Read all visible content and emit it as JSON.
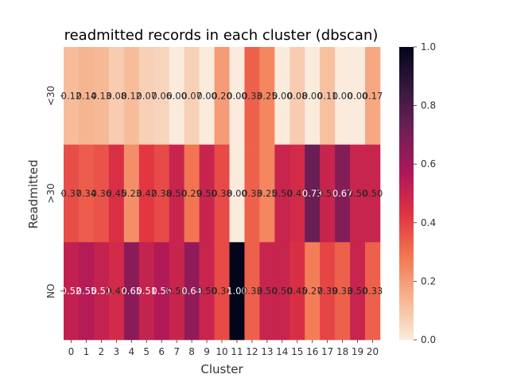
{
  "chart_data": {
    "type": "heatmap",
    "title": "readmitted records in each cluster (dbscan)",
    "xlabel": "Cluster",
    "ylabel": "Readmitted",
    "x_categories": [
      "0",
      "1",
      "2",
      "3",
      "4",
      "5",
      "6",
      "7",
      "8",
      "9",
      "10",
      "11",
      "12",
      "13",
      "14",
      "15",
      "16",
      "17",
      "18",
      "19",
      "20"
    ],
    "y_categories": [
      "<30",
      ">30",
      "NO"
    ],
    "values": [
      [
        0.12,
        0.14,
        0.13,
        0.08,
        0.12,
        0.07,
        0.06,
        0.0,
        0.07,
        0.0,
        0.2,
        0.0,
        0.33,
        0.25,
        0.0,
        0.08,
        0.0,
        0.11,
        0.0,
        0.0,
        0.17
      ],
      [
        0.37,
        0.34,
        0.36,
        0.45,
        0.23,
        0.42,
        0.38,
        0.5,
        0.29,
        0.5,
        0.38,
        0.0,
        0.33,
        0.25,
        0.5,
        0.47,
        0.73,
        0.5,
        0.67,
        0.5,
        0.5
      ],
      [
        0.52,
        0.55,
        0.51,
        0.47,
        0.65,
        0.51,
        0.56,
        0.5,
        0.64,
        0.5,
        0.38,
        1.0,
        0.33,
        0.5,
        0.5,
        0.45,
        0.27,
        0.39,
        0.33,
        0.5,
        0.33
      ]
    ],
    "value_labels": [
      [
        "0.12",
        "0.14",
        "0.13",
        "0.08",
        "0.12",
        "0.07",
        "0.06",
        "0.00",
        "0.07",
        "0.00",
        "0.20",
        "0.00",
        "0.33",
        "0.25",
        "0.00",
        "0.08",
        "0.00",
        "0.11",
        "0.00",
        "0.00",
        "0.17"
      ],
      [
        "0.37",
        "0.34",
        "0.36",
        "0.45",
        "0.23",
        "0.42",
        "0.38",
        "0.50",
        "0.29",
        "0.50",
        "0.38",
        "0.00",
        "0.33",
        "0.25",
        "0.50",
        "0.47",
        "0.73",
        "0.50",
        "0.67",
        "0.50",
        "0.50"
      ],
      [
        "0.52",
        "0.55",
        "0.51",
        "0.47",
        "0.65",
        "0.51",
        "0.56",
        "0.50",
        "0.64",
        "0.50",
        "0.38",
        "1.00",
        "0.33",
        "0.50",
        "0.50",
        "0.45",
        "0.27",
        "0.39",
        "0.33",
        "0.50",
        "0.33"
      ]
    ],
    "colorbar": {
      "range": [
        0.0,
        1.0
      ],
      "tick_values": [
        0.0,
        0.2,
        0.4,
        0.6,
        0.8,
        1.0
      ],
      "tick_labels": [
        "0.0",
        "0.2",
        "0.4",
        "0.6",
        "0.8",
        "1.0"
      ]
    },
    "colormap": "rocket_r",
    "colormap_stops": [
      "#faebdd",
      "#f6b48e",
      "#f37651",
      "#e13342",
      "#ad1759",
      "#701f57",
      "#35193e",
      "#03051a"
    ]
  }
}
